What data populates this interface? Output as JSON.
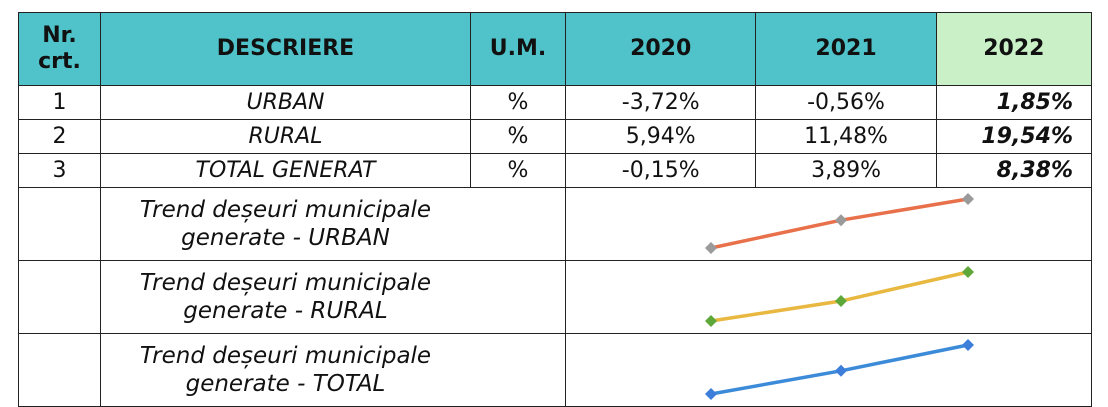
{
  "table": {
    "header": [
      "Nr.\ncrt.",
      "DESCRIERE",
      "U.M.",
      "2020",
      "2021",
      "2022"
    ],
    "rows": [
      {
        "nr": "1",
        "descriere": "URBAN",
        "um": "%",
        "values": [
          -3.72,
          -0.56,
          1.85
        ],
        "value_labels": [
          "-3,72%",
          "-0,56%",
          "1,85%"
        ]
      },
      {
        "nr": "2",
        "descriere": "RURAL",
        "um": "%",
        "values": [
          5.94,
          11.48,
          19.54
        ],
        "value_labels": [
          "5,94%",
          "11,48%",
          "19,54%"
        ]
      },
      {
        "nr": "3",
        "descriere": "TOTAL GENERAT",
        "um": "%",
        "values": [
          -0.15,
          3.89,
          8.38
        ],
        "value_labels": [
          "-0,15%",
          "3,89%",
          "8,38%"
        ]
      }
    ],
    "trends": [
      {
        "label": "Trend deșeuri municipale\ngenerate - URBAN",
        "line_color": "#e8704a",
        "marker_color": "#9a9a9a"
      },
      {
        "label": "Trend deșeuri municipale\ngenerate - RURAL",
        "line_color": "#e8b840",
        "marker_color": "#5ea83a"
      },
      {
        "label": "Trend deșeuri municipale\ngenerate - TOTAL",
        "line_color": "#3c8bd9",
        "marker_color": "#3c7ed9"
      }
    ]
  }
}
